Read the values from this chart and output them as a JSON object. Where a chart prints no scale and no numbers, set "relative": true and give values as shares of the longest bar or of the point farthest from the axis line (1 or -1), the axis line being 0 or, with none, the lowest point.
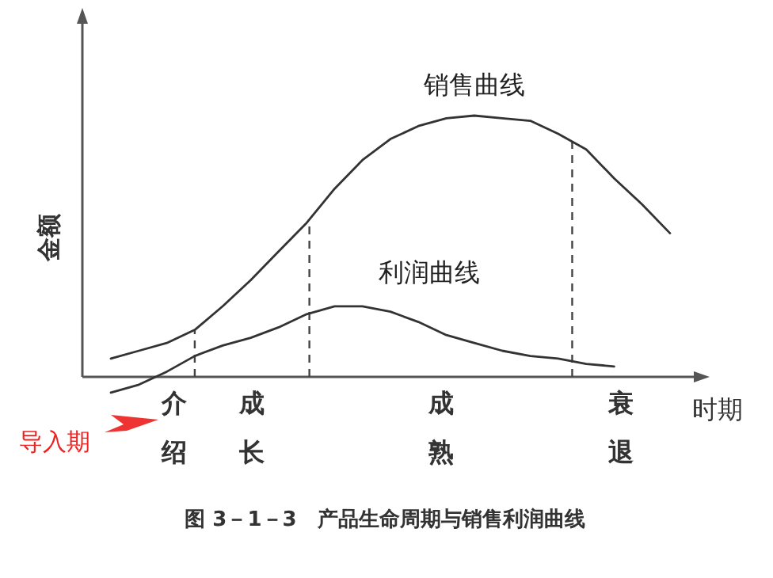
{
  "chart_data": {
    "type": "line",
    "relative": true,
    "title": "图 3－1－3　产品生命周期与销售利润曲线",
    "xlabel": "时期",
    "ylabel": "金额",
    "categories": [
      null,
      null,
      null,
      null,
      null,
      null,
      null,
      null,
      null,
      null,
      null,
      null,
      null,
      null,
      null,
      null,
      null,
      null,
      null,
      null,
      null
    ],
    "series": [
      {
        "name": "销售曲线",
        "color": "#333333",
        "values": [
          0.07,
          0.1,
          0.13,
          0.18,
          0.27,
          0.37,
          0.48,
          0.59,
          0.72,
          0.83,
          0.91,
          0.96,
          0.99,
          1.0,
          0.99,
          0.98,
          0.93,
          0.87,
          0.76,
          0.66,
          0.55
        ]
      },
      {
        "name": "利润曲线",
        "color": "#333333",
        "values": [
          -0.06,
          -0.03,
          0.02,
          0.08,
          0.12,
          0.15,
          0.19,
          0.24,
          0.27,
          0.27,
          0.25,
          0.21,
          0.16,
          0.13,
          0.1,
          0.08,
          0.07,
          0.05,
          0.04,
          null,
          null
        ]
      }
    ],
    "annotations": [
      "介绍",
      "成长",
      "成熟",
      "衰退",
      "导入期"
    ],
    "marker": "none",
    "line_style": "solid"
  }
}
